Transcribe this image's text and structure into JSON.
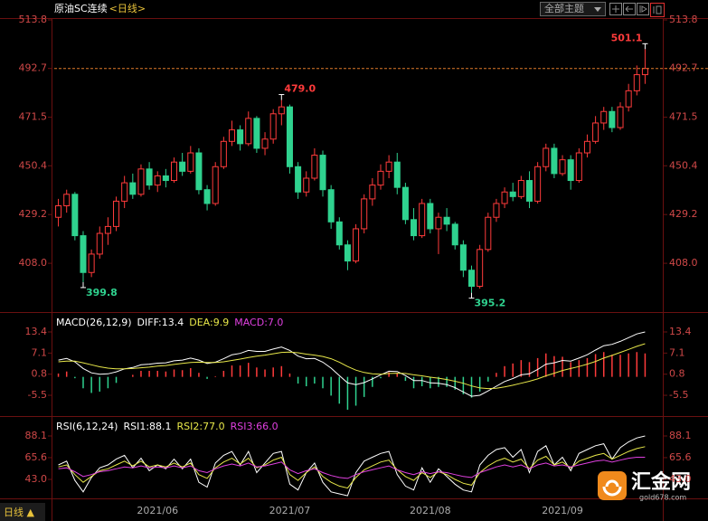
{
  "header": {
    "title": "原油SC连续",
    "period": "<日线>",
    "theme_button": "全部主题"
  },
  "footer": {
    "period": "日线 ▲"
  },
  "watermark": {
    "name": "汇金网",
    "site": "gold678.com"
  },
  "chart_data": [
    {
      "type": "candlestick",
      "categories": [
        null,
        null,
        null,
        null,
        null,
        null,
        null,
        null,
        null,
        null,
        null,
        null,
        "2021/06",
        null,
        null,
        null,
        null,
        null,
        null,
        null,
        null,
        null,
        null,
        null,
        null,
        null,
        null,
        null,
        "2021/07",
        null,
        null,
        null,
        null,
        null,
        null,
        null,
        null,
        null,
        null,
        null,
        null,
        null,
        null,
        null,
        null,
        "2021/08",
        null,
        null,
        null,
        null,
        null,
        null,
        null,
        null,
        null,
        null,
        null,
        null,
        null,
        null,
        null,
        "2021/09",
        null,
        null,
        null,
        null,
        null,
        null,
        null,
        null,
        null,
        null
      ],
      "ohlc": [
        [
          428,
          436,
          424,
          433
        ],
        [
          433,
          440,
          430,
          438
        ],
        [
          438,
          439,
          418,
          420
        ],
        [
          420,
          422,
          399.8,
          404
        ],
        [
          404,
          414,
          402,
          412
        ],
        [
          412,
          424,
          410,
          421
        ],
        [
          421,
          428,
          416,
          424
        ],
        [
          424,
          437,
          422,
          435
        ],
        [
          435,
          446,
          432,
          443
        ],
        [
          443,
          447,
          436,
          438
        ],
        [
          438,
          451,
          437,
          449
        ],
        [
          449,
          452,
          440,
          442
        ],
        [
          442,
          448,
          439,
          446
        ],
        [
          446,
          449,
          441,
          444
        ],
        [
          444,
          454,
          443,
          452
        ],
        [
          452,
          456,
          446,
          448
        ],
        [
          448,
          459,
          447,
          456
        ],
        [
          456,
          458,
          438,
          440
        ],
        [
          440,
          442,
          431,
          434
        ],
        [
          434,
          452,
          433,
          450
        ],
        [
          450,
          463,
          449,
          461
        ],
        [
          461,
          470,
          459,
          466
        ],
        [
          466,
          468,
          457,
          460
        ],
        [
          460,
          474,
          459,
          471
        ],
        [
          471,
          472,
          456,
          458
        ],
        [
          458,
          465,
          455,
          462
        ],
        [
          462,
          475,
          460,
          473
        ],
        [
          473,
          479,
          468,
          476
        ],
        [
          476,
          477,
          447,
          450
        ],
        [
          450,
          452,
          436,
          439
        ],
        [
          439,
          448,
          437,
          445
        ],
        [
          445,
          458,
          444,
          455
        ],
        [
          455,
          457,
          437,
          440
        ],
        [
          440,
          442,
          423,
          426
        ],
        [
          426,
          428,
          414,
          416
        ],
        [
          416,
          418,
          405,
          409
        ],
        [
          409,
          425,
          408,
          423
        ],
        [
          423,
          438,
          421,
          436
        ],
        [
          436,
          445,
          433,
          442
        ],
        [
          442,
          451,
          440,
          448
        ],
        [
          448,
          455,
          445,
          452
        ],
        [
          452,
          456,
          438,
          441
        ],
        [
          441,
          443,
          425,
          427
        ],
        [
          427,
          432,
          418,
          420
        ],
        [
          420,
          436,
          419,
          434
        ],
        [
          434,
          436,
          421,
          423
        ],
        [
          423,
          430,
          412,
          428
        ],
        [
          428,
          432,
          422,
          425
        ],
        [
          425,
          426,
          414,
          416
        ],
        [
          416,
          418,
          402,
          405
        ],
        [
          405,
          407,
          395.2,
          398
        ],
        [
          398,
          416,
          397,
          414
        ],
        [
          414,
          430,
          413,
          428
        ],
        [
          428,
          436,
          426,
          434
        ],
        [
          434,
          441,
          432,
          439
        ],
        [
          439,
          443,
          435,
          437
        ],
        [
          437,
          446,
          436,
          444
        ],
        [
          444,
          448,
          432,
          435
        ],
        [
          435,
          452,
          434,
          450
        ],
        [
          450,
          460,
          448,
          458
        ],
        [
          458,
          460,
          445,
          447
        ],
        [
          447,
          455,
          446,
          453
        ],
        [
          453,
          455,
          440,
          444
        ],
        [
          444,
          458,
          443,
          456
        ],
        [
          456,
          464,
          454,
          461
        ],
        [
          461,
          472,
          460,
          469
        ],
        [
          469,
          476,
          466,
          474
        ],
        [
          474,
          476,
          465,
          467
        ],
        [
          467,
          478,
          466,
          476
        ],
        [
          476,
          486,
          474,
          483
        ],
        [
          483,
          494,
          481,
          490
        ],
        [
          490,
          501.1,
          486,
          492.7
        ]
      ],
      "ylim": [
        386.8,
        514.6
      ],
      "yticks": [
        {
          "value": 408,
          "label": "408.0"
        },
        429.2,
        450.4,
        471.5,
        492.7,
        513.8
      ],
      "up_color": "#ff3b3b",
      "down_color": "#2fd28f",
      "last_line_color": "#e07a2a",
      "extreme_labels": [
        501.1,
        {
          "value": 479,
          "label": "479.0"
        },
        399.8,
        395.2
      ]
    },
    {
      "type": "macd",
      "title": "MACD(26,12,9)",
      "ylim": [
        -11.7,
        18.8
      ],
      "yticks": [
        13.4,
        7.1,
        0.8,
        -5.5
      ],
      "series": [
        {
          "name": "DIFF:13.4",
          "color": "#ffffff",
          "style": "line",
          "values": [
            5.0,
            5.5,
            4.5,
            2.5,
            1.2,
            0.8,
            0.9,
            1.5,
            2.4,
            2.8,
            3.6,
            3.8,
            4.1,
            4.2,
            4.8,
            5.0,
            5.6,
            5.0,
            4.0,
            4.4,
            5.4,
            6.6,
            7.0,
            7.9,
            7.6,
            7.6,
            8.3,
            8.9,
            7.9,
            6.2,
            5.4,
            5.5,
            4.4,
            2.6,
            0.4,
            -1.8,
            -2.3,
            -1.7,
            -0.6,
            0.6,
            1.7,
            1.6,
            0.4,
            -1.1,
            -1.1,
            -1.8,
            -1.9,
            -2.3,
            -3.2,
            -4.5,
            -5.8,
            -5.5,
            -4.2,
            -2.8,
            -1.4,
            -0.5,
            0.6,
            0.9,
            2.2,
            3.8,
            4.2,
            4.9,
            4.7,
            5.6,
            6.6,
            8.0,
            9.3,
            9.7,
            10.6,
            11.7,
            12.8,
            13.4
          ]
        },
        {
          "name": "DEA:9.9",
          "color": "#e8e84a",
          "style": "line",
          "values": [
            4.5,
            4.7,
            4.7,
            4.2,
            3.6,
            3.0,
            2.6,
            2.4,
            2.4,
            2.5,
            2.7,
            2.9,
            3.2,
            3.4,
            3.7,
            4.0,
            4.3,
            4.4,
            4.3,
            4.3,
            4.5,
            4.9,
            5.3,
            5.8,
            6.2,
            6.5,
            6.9,
            7.3,
            7.4,
            7.2,
            6.8,
            6.5,
            6.1,
            5.4,
            4.4,
            3.1,
            2.0,
            1.3,
            0.9,
            0.8,
            1.0,
            1.1,
            1.0,
            0.6,
            0.3,
            -0.1,
            -0.4,
            -0.8,
            -1.3,
            -1.9,
            -2.7,
            -3.3,
            -3.5,
            -3.4,
            -3.0,
            -2.5,
            -1.9,
            -1.3,
            -0.6,
            0.3,
            1.1,
            1.9,
            2.5,
            3.1,
            3.8,
            4.6,
            5.6,
            6.4,
            7.3,
            8.2,
            9.1,
            9.9
          ]
        },
        {
          "name": "MACD:7.0",
          "color": "#e040e0",
          "style": "histogram",
          "up_color": "#ff3b3b",
          "down_color": "#2fd28f",
          "values": [
            1.0,
            1.6,
            -0.4,
            -3.4,
            -4.8,
            -4.4,
            -3.4,
            -1.8,
            0.0,
            0.6,
            1.8,
            1.8,
            1.8,
            1.6,
            2.2,
            2.0,
            2.6,
            1.2,
            -0.6,
            0.2,
            1.8,
            3.4,
            3.4,
            4.2,
            2.8,
            2.2,
            2.8,
            3.2,
            1.0,
            -2.0,
            -2.8,
            -2.0,
            -3.4,
            -5.6,
            -8.0,
            -9.8,
            -8.6,
            -6.0,
            -3.0,
            -0.4,
            1.4,
            1.0,
            -1.2,
            -3.4,
            -2.8,
            -3.4,
            -3.0,
            -3.0,
            -3.8,
            -5.2,
            -6.2,
            -4.4,
            -1.4,
            1.2,
            3.2,
            4.0,
            5.0,
            4.4,
            5.6,
            7.0,
            6.2,
            6.0,
            4.4,
            5.0,
            5.6,
            6.8,
            7.4,
            6.6,
            6.6,
            7.0,
            7.4,
            7.0
          ]
        }
      ]
    },
    {
      "type": "rsi",
      "title": "RSI(6,12,24)",
      "ylim": [
        24.2,
        106.9
      ],
      "yticks": [
        88.1,
        65.6,
        {
          "value": 43,
          "label": "43.0"
        }
      ],
      "series": [
        {
          "name": "RSI1:88.1",
          "color": "#ffffff",
          "values": [
            58,
            62,
            42,
            30,
            45,
            55,
            58,
            64,
            68,
            55,
            65,
            52,
            58,
            54,
            64,
            54,
            64,
            40,
            35,
            60,
            68,
            72,
            58,
            72,
            50,
            60,
            70,
            72,
            38,
            32,
            50,
            60,
            40,
            30,
            28,
            26,
            50,
            62,
            66,
            70,
            72,
            48,
            36,
            32,
            55,
            40,
            54,
            46,
            38,
            32,
            30,
            58,
            68,
            74,
            76,
            66,
            74,
            50,
            72,
            78,
            58,
            66,
            52,
            70,
            74,
            78,
            80,
            64,
            76,
            82,
            86,
            88.1
          ]
        },
        {
          "name": "RSI2:77.0",
          "color": "#e8e84a",
          "values": [
            56,
            58,
            48,
            40,
            46,
            52,
            54,
            58,
            62,
            57,
            62,
            56,
            58,
            56,
            60,
            56,
            60,
            48,
            44,
            55,
            61,
            65,
            59,
            65,
            55,
            58,
            63,
            66,
            48,
            42,
            50,
            56,
            46,
            40,
            36,
            34,
            45,
            53,
            57,
            61,
            63,
            53,
            46,
            42,
            50,
            45,
            51,
            48,
            43,
            39,
            37,
            50,
            57,
            62,
            65,
            61,
            64,
            54,
            63,
            67,
            58,
            61,
            55,
            62,
            65,
            68,
            70,
            64,
            68,
            72,
            75,
            77.0
          ]
        },
        {
          "name": "RSI3:66.0",
          "color": "#e040e0",
          "values": [
            54,
            55,
            51,
            46,
            48,
            51,
            52,
            54,
            56,
            55,
            57,
            55,
            56,
            55,
            57,
            55,
            57,
            52,
            50,
            54,
            57,
            59,
            57,
            60,
            56,
            57,
            59,
            61,
            53,
            49,
            52,
            54,
            50,
            47,
            45,
            44,
            48,
            51,
            53,
            55,
            57,
            53,
            50,
            48,
            51,
            49,
            51,
            50,
            48,
            46,
            45,
            50,
            53,
            56,
            58,
            56,
            58,
            54,
            58,
            60,
            57,
            58,
            56,
            58,
            60,
            62,
            63,
            61,
            63,
            65,
            66,
            66.0
          ]
        }
      ]
    }
  ]
}
